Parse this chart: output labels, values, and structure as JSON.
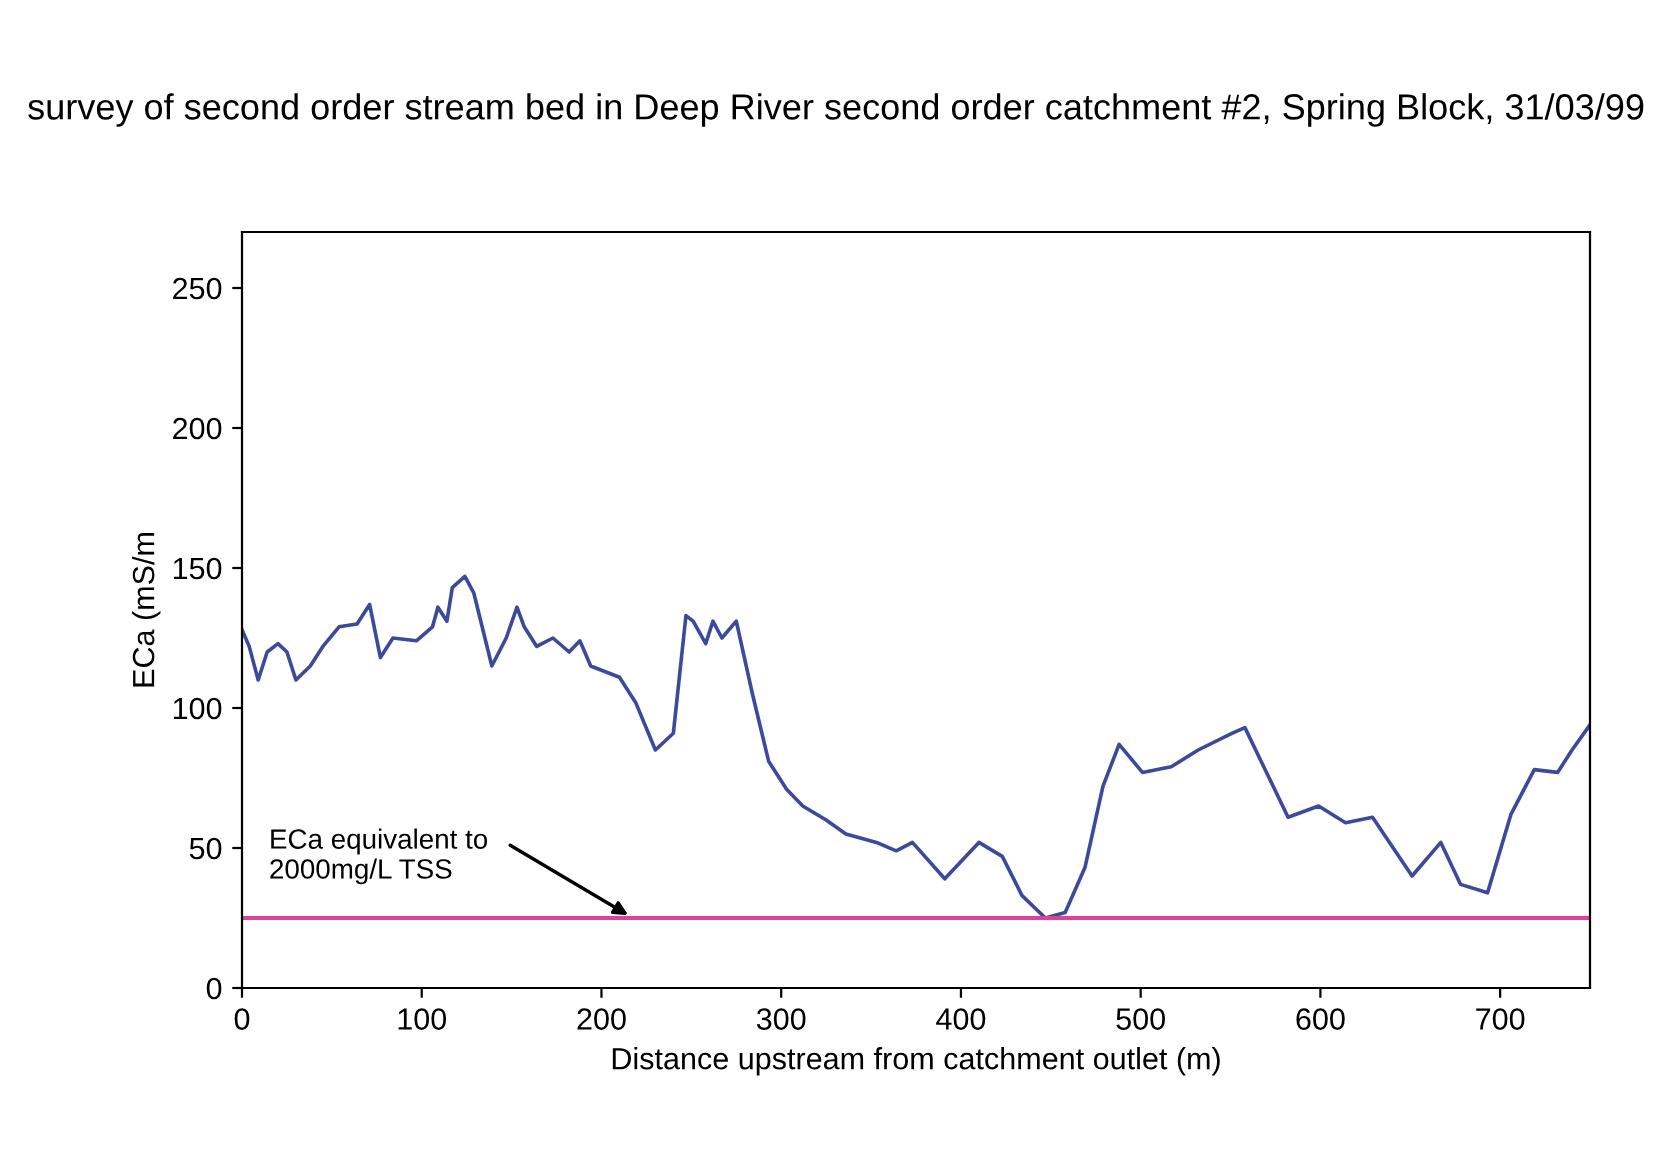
{
  "chart_data": {
    "type": "line",
    "title": "survey of second order stream bed in Deep River second order catchment #2, Spring Block, 31/03/99",
    "xlabel": "Distance upstream from catchment outlet (m)",
    "ylabel": "ECa (mS/m",
    "x": [
      0,
      4,
      9,
      14,
      20,
      25,
      30,
      38,
      45,
      54,
      64,
      71,
      77,
      84,
      97,
      106,
      109,
      114,
      117,
      124,
      129,
      139,
      147,
      153,
      157,
      164,
      173,
      182,
      188,
      194,
      210,
      219,
      230,
      240,
      247,
      251,
      258,
      262,
      267,
      275,
      284,
      293,
      303,
      312,
      325,
      336,
      353,
      364,
      373,
      391,
      410,
      423,
      434,
      447,
      458,
      469,
      479,
      488,
      501,
      517,
      532,
      551,
      558,
      567,
      582,
      599,
      614,
      629,
      651,
      667,
      678,
      693,
      706,
      719,
      732,
      740,
      750
    ],
    "series": [
      {
        "color": "#3b4a9a",
        "values": [
          128,
          122,
          110,
          120,
          123,
          120,
          110,
          115,
          122,
          129,
          130,
          137,
          118,
          125,
          124,
          129,
          136,
          131,
          143,
          147,
          141,
          115,
          125,
          136,
          129,
          122,
          125,
          120,
          124,
          115,
          111,
          102,
          85,
          91,
          133,
          131,
          123,
          131,
          125,
          131,
          105,
          81,
          71,
          65,
          60,
          55,
          52,
          49,
          52,
          39,
          52,
          47,
          33,
          25,
          27,
          43,
          72,
          87,
          77,
          79,
          85,
          91,
          93,
          81,
          61,
          65,
          59,
          61,
          40,
          52,
          37,
          34,
          62,
          78,
          77,
          85,
          94
        ]
      }
    ],
    "xlim": [
      0,
      750
    ],
    "ylim": [
      0,
      270
    ],
    "xticks": [
      0,
      100,
      200,
      300,
      400,
      500,
      600,
      700
    ],
    "yticks": [
      0,
      50,
      100,
      150,
      200,
      250
    ],
    "ref_lines": [
      {
        "axis": "y",
        "value": 25,
        "label": "ECa equivalent to\n2000mg/L TSS",
        "color": "#e0409a"
      }
    ],
    "grid": false,
    "legend": false
  }
}
